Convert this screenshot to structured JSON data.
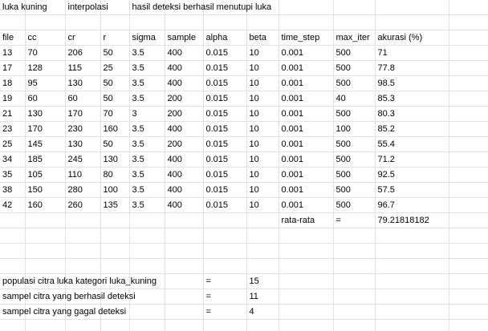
{
  "header": {
    "group_luka_kuning": "luka kuning",
    "group_interpolasi": "interpolasi",
    "group_hasil": "hasil deteksi berhasil menutupi luka"
  },
  "columns": [
    "file",
    "cc",
    "cr",
    "r",
    "sigma",
    "sample",
    "alpha",
    "beta",
    "time_step",
    "max_iter",
    "akurasi (%)"
  ],
  "rows": [
    [
      "13",
      "70",
      "206",
      "50",
      "3.5",
      "400",
      "0.015",
      "10",
      "0.001",
      "500",
      "71"
    ],
    [
      "17",
      "128",
      "115",
      "25",
      "3.5",
      "400",
      "0.015",
      "10",
      "0.001",
      "500",
      "77.8"
    ],
    [
      "18",
      "95",
      "130",
      "50",
      "3.5",
      "400",
      "0.015",
      "10",
      "0.001",
      "500",
      "98.5"
    ],
    [
      "19",
      "60",
      "60",
      "50",
      "3.5",
      "200",
      "0.015",
      "10",
      "0.001",
      "40",
      "85.3"
    ],
    [
      "21",
      "130",
      "170",
      "70",
      "3",
      "200",
      "0.015",
      "10",
      "0.001",
      "500",
      "80.3"
    ],
    [
      "23",
      "170",
      "230",
      "160",
      "3.5",
      "400",
      "0.015",
      "10",
      "0.001",
      "100",
      "85.2"
    ],
    [
      "25",
      "145",
      "130",
      "50",
      "3.5",
      "200",
      "0.015",
      "10",
      "0.001",
      "500",
      "55.4"
    ],
    [
      "34",
      "185",
      "245",
      "130",
      "3.5",
      "400",
      "0.015",
      "10",
      "0.001",
      "500",
      "71.2"
    ],
    [
      "35",
      "105",
      "110",
      "80",
      "3.5",
      "400",
      "0.015",
      "10",
      "0.001",
      "500",
      "92.5"
    ],
    [
      "38",
      "150",
      "280",
      "100",
      "3.5",
      "400",
      "0.015",
      "10",
      "0.001",
      "500",
      "57.5"
    ],
    [
      "42",
      "160",
      "260",
      "135",
      "3.5",
      "400",
      "0.015",
      "10",
      "0.001",
      "500",
      "96.7"
    ]
  ],
  "average": {
    "label": "rata-rata",
    "eq": "=",
    "value": "79.21818182"
  },
  "summary": [
    {
      "label": "populasi citra luka kategori luka_kuning",
      "eq": "=",
      "value": "15"
    },
    {
      "label": "sampel citra yang berhasil deteksi",
      "eq": "=",
      "value": "11"
    },
    {
      "label": "sampel citra yang gagal deteksi",
      "eq": "=",
      "value": "4"
    }
  ]
}
